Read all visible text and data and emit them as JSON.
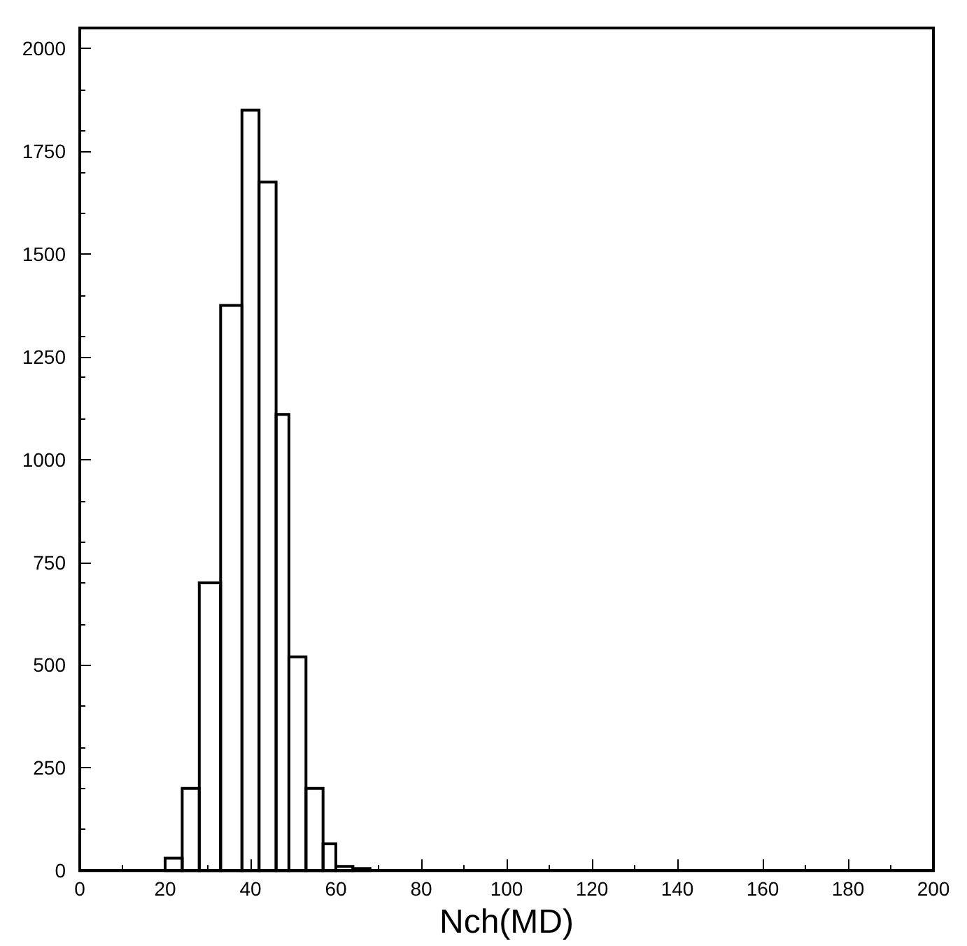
{
  "chart_data": {
    "type": "histogram",
    "xlabel": "Nch(MD)",
    "bins": [
      20,
      24,
      28,
      33,
      38,
      42,
      46,
      49,
      53,
      57,
      60,
      64,
      68
    ],
    "values": [
      30,
      200,
      700,
      1375,
      1850,
      1675,
      1110,
      520,
      200,
      65,
      10,
      5
    ],
    "color": "#000000",
    "xlim": [
      0,
      200
    ],
    "xticks": [
      0,
      20,
      40,
      60,
      80,
      100,
      120,
      140,
      160,
      180,
      200
    ],
    "ylim": [
      0,
      2050
    ],
    "yticks": [
      0,
      250,
      500,
      750,
      1000,
      1250,
      1500,
      1750,
      2000
    ],
    "grid": false
  }
}
